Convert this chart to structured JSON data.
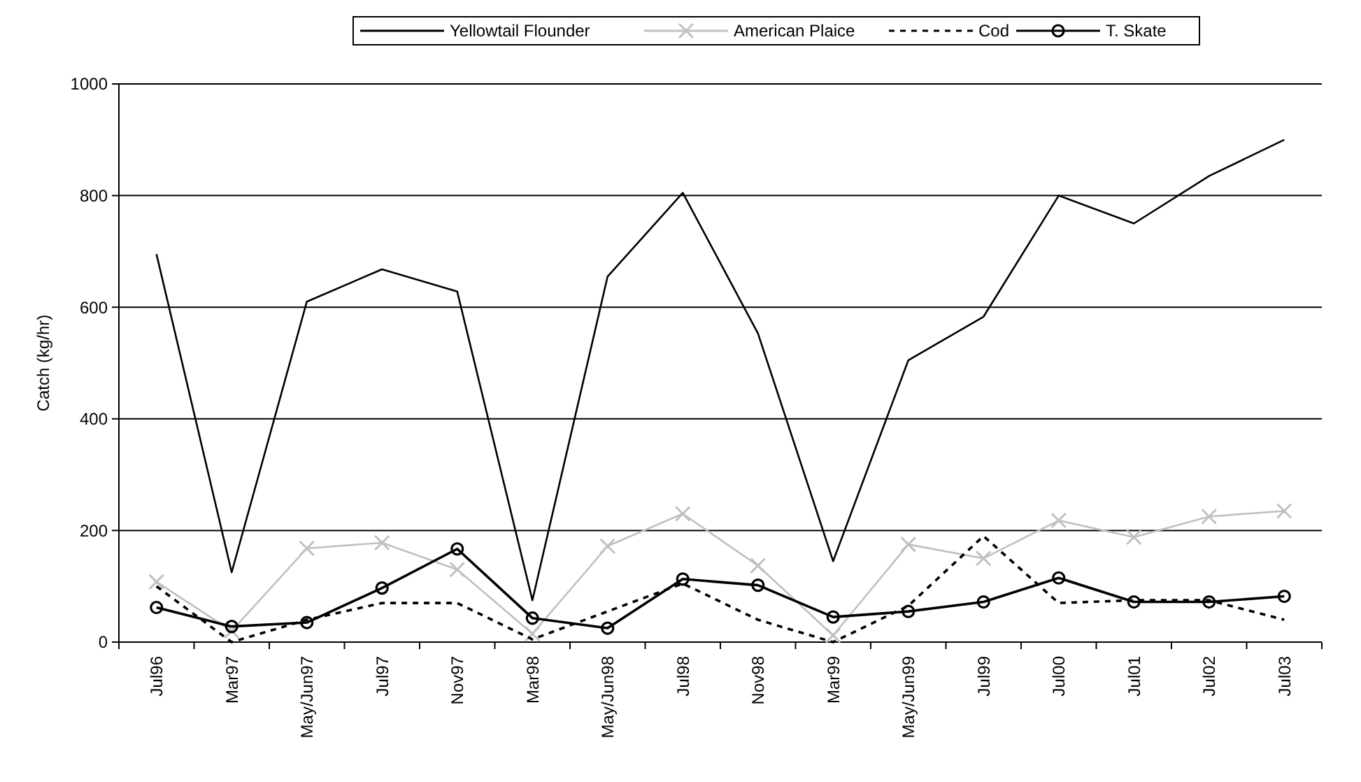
{
  "chart_data": {
    "type": "line",
    "ylabel": "Catch (kg/hr)",
    "categories": [
      "Jul96",
      "Mar97",
      "May/Jun97",
      "Jul97",
      "Nov97",
      "Mar98",
      "May/Jun98",
      "Jul98",
      "Nov98",
      "Mar99",
      "May/Jun99",
      "Jul99",
      "Jul00",
      "Jul01",
      "Jul02",
      "Jul03"
    ],
    "ylim": [
      0,
      1000
    ],
    "yticks": [
      0,
      200,
      400,
      600,
      800,
      1000
    ],
    "grid": "y",
    "legend": "top",
    "series": [
      {
        "name": "Yellowtail Flounder",
        "color": "#000000",
        "marker": "none",
        "line_style": "solid",
        "values": [
          695,
          125,
          610,
          668,
          628,
          75,
          655,
          805,
          553,
          145,
          505,
          583,
          800,
          750,
          835,
          900
        ]
      },
      {
        "name": "American Plaice",
        "color": "#c0c0c0",
        "marker": "cross",
        "line_style": "solid",
        "values": [
          108,
          20,
          168,
          178,
          130,
          15,
          172,
          230,
          137,
          12,
          175,
          150,
          218,
          188,
          225,
          235
        ]
      },
      {
        "name": "Cod",
        "color": "#000000",
        "marker": "none",
        "line_style": "dashed",
        "values": [
          100,
          0,
          40,
          70,
          70,
          5,
          55,
          105,
          40,
          0,
          65,
          190,
          70,
          75,
          75,
          40
        ]
      },
      {
        "name": "T. Skate",
        "color": "#000000",
        "marker": "circle",
        "line_style": "solid",
        "values": [
          62,
          28,
          35,
          97,
          167,
          43,
          25,
          113,
          102,
          45,
          55,
          72,
          115,
          72,
          72,
          82
        ]
      }
    ]
  }
}
